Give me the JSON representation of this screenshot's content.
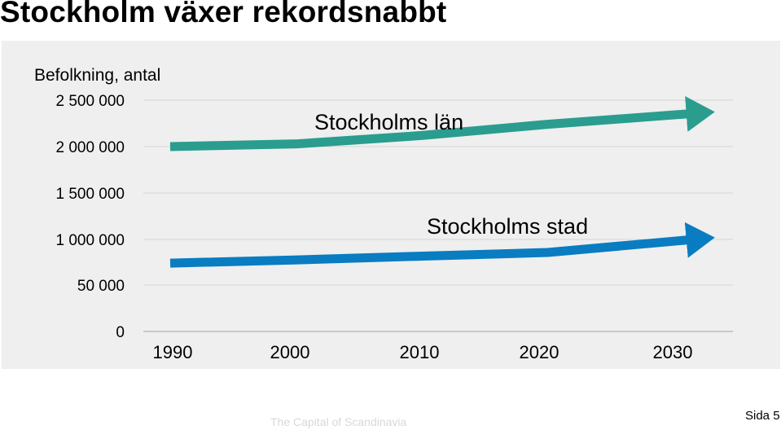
{
  "slide": {
    "title": "Stockholm växer rekordsnabbt",
    "footer": "The Capital of Scandinavia",
    "page_label": "Sida 5"
  },
  "chart_data": {
    "type": "line",
    "ylabel": "Befolkning, antal",
    "xlabel": "",
    "y_tick_labels": [
      "0",
      "50 000",
      "1 000 000",
      "1 500 000",
      "2 000 000",
      "2 500 000"
    ],
    "x_tick_labels": [
      "1990",
      "2000",
      "2010",
      "2020",
      "2030"
    ],
    "xlim": [
      1990,
      2034
    ],
    "grid": true,
    "legend": "none",
    "series": [
      {
        "name": "Stockholms län",
        "color": "#2a9d8f",
        "x": [
          1990,
          2000,
          2010,
          2020,
          2030
        ],
        "y": [
          2000000,
          2030000,
          2120000,
          2240000,
          2340000
        ]
      },
      {
        "name": "Stockholms stad",
        "color": "#0a7cc1",
        "x": [
          1990,
          2000,
          2010,
          2020,
          2030
        ],
        "y": [
          745000,
          780000,
          820000,
          860000,
          980000
        ]
      }
    ]
  }
}
